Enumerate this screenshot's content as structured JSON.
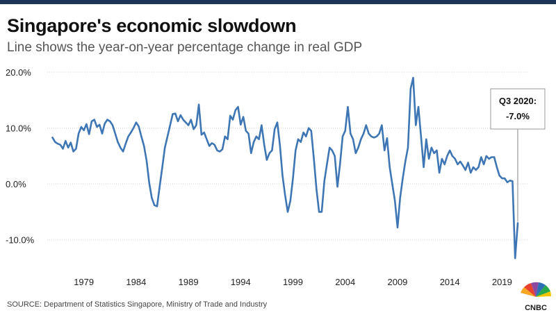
{
  "header": {
    "title": "Singapore's economic slowdown",
    "subtitle": "Line shows the year-on-year percentage change in real GDP"
  },
  "footer": {
    "source": "SOURCE: Department of Statistics Singapore, Ministry of Trade and Industry",
    "logo_text": "CNBC",
    "logo_icon": "peacock-icon"
  },
  "colors": {
    "line": "#3e76b5",
    "grid": "#d4d4d4",
    "annotation_border": "#999999",
    "top_bar": "#1e3557"
  },
  "chart_data": {
    "type": "line",
    "title": "Singapore's economic slowdown",
    "subtitle": "Line shows the year-on-year percentage change in real GDP",
    "xlabel": "",
    "ylabel": "",
    "xlim": [
      1975.5,
      2021.5
    ],
    "ylim": [
      -15,
      20
    ],
    "x_ticks": [
      1979,
      1984,
      1989,
      1994,
      1999,
      2004,
      2009,
      2014,
      2019
    ],
    "x_tick_labels": [
      "1979",
      "1984",
      "1989",
      "1994",
      "1999",
      "2004",
      "2009",
      "2014",
      "2019"
    ],
    "y_ticks": [
      20,
      10,
      0,
      -10
    ],
    "y_tick_labels": [
      "20.0%",
      "10.0%",
      "0.0%",
      "-10.0%"
    ],
    "grid": "horizontal",
    "legend": "none",
    "annotation": {
      "lines": [
        "Q3 2020:",
        "-7.0%"
      ],
      "x": 2020.5,
      "y": -7.0
    },
    "series": [
      {
        "points": [
          [
            1976.0,
            8.3
          ],
          [
            1976.25,
            7.5
          ],
          [
            1976.5,
            7.2
          ],
          [
            1976.75,
            7.0
          ],
          [
            1977.0,
            6.3
          ],
          [
            1977.25,
            7.7
          ],
          [
            1977.5,
            6.5
          ],
          [
            1977.75,
            7.4
          ],
          [
            1978.0,
            5.8
          ],
          [
            1978.25,
            6.3
          ],
          [
            1978.5,
            9.0
          ],
          [
            1978.75,
            10.2
          ],
          [
            1979.0,
            9.6
          ],
          [
            1979.25,
            10.7
          ],
          [
            1979.5,
            8.9
          ],
          [
            1979.75,
            11.2
          ],
          [
            1980.0,
            11.5
          ],
          [
            1980.25,
            10.2
          ],
          [
            1980.5,
            10.6
          ],
          [
            1980.75,
            9.0
          ],
          [
            1981.0,
            10.8
          ],
          [
            1981.25,
            11.5
          ],
          [
            1981.5,
            11.2
          ],
          [
            1981.75,
            10.5
          ],
          [
            1982.0,
            9.0
          ],
          [
            1982.25,
            7.5
          ],
          [
            1982.5,
            6.5
          ],
          [
            1982.75,
            5.8
          ],
          [
            1983.0,
            7.2
          ],
          [
            1983.25,
            8.5
          ],
          [
            1983.5,
            9.2
          ],
          [
            1983.75,
            10.0
          ],
          [
            1984.0,
            11.0
          ],
          [
            1984.25,
            10.3
          ],
          [
            1984.5,
            8.5
          ],
          [
            1984.75,
            6.8
          ],
          [
            1985.0,
            4.2
          ],
          [
            1985.25,
            0.2
          ],
          [
            1985.5,
            -2.5
          ],
          [
            1985.75,
            -3.8
          ],
          [
            1986.0,
            -4.0
          ],
          [
            1986.25,
            -0.5
          ],
          [
            1986.5,
            3.0
          ],
          [
            1986.75,
            6.5
          ],
          [
            1987.0,
            8.5
          ],
          [
            1987.25,
            10.5
          ],
          [
            1987.5,
            12.5
          ],
          [
            1987.75,
            12.6
          ],
          [
            1988.0,
            11.2
          ],
          [
            1988.25,
            12.3
          ],
          [
            1988.5,
            11.5
          ],
          [
            1988.75,
            11.0
          ],
          [
            1989.0,
            10.5
          ],
          [
            1989.25,
            11.5
          ],
          [
            1989.5,
            9.8
          ],
          [
            1989.75,
            10.5
          ],
          [
            1990.0,
            14.2
          ],
          [
            1990.25,
            8.8
          ],
          [
            1990.5,
            9.2
          ],
          [
            1990.75,
            8.0
          ],
          [
            1991.0,
            6.8
          ],
          [
            1991.25,
            7.3
          ],
          [
            1991.5,
            7.0
          ],
          [
            1991.75,
            6.0
          ],
          [
            1992.0,
            5.8
          ],
          [
            1992.25,
            6.2
          ],
          [
            1992.5,
            8.5
          ],
          [
            1992.75,
            8.0
          ],
          [
            1993.0,
            12.2
          ],
          [
            1993.25,
            11.5
          ],
          [
            1993.5,
            13.2
          ],
          [
            1993.75,
            13.8
          ],
          [
            1994.0,
            10.6
          ],
          [
            1994.25,
            12.0
          ],
          [
            1994.5,
            9.5
          ],
          [
            1994.75,
            9.0
          ],
          [
            1995.0,
            5.5
          ],
          [
            1995.25,
            7.5
          ],
          [
            1995.5,
            8.5
          ],
          [
            1995.75,
            8.0
          ],
          [
            1996.0,
            10.5
          ],
          [
            1996.25,
            7.0
          ],
          [
            1996.5,
            4.3
          ],
          [
            1996.75,
            5.5
          ],
          [
            1997.0,
            6.0
          ],
          [
            1997.25,
            9.8
          ],
          [
            1997.5,
            11.0
          ],
          [
            1997.75,
            7.0
          ],
          [
            1998.0,
            1.5
          ],
          [
            1998.25,
            -2.0
          ],
          [
            1998.5,
            -5.0
          ],
          [
            1998.75,
            -3.0
          ],
          [
            1999.0,
            1.0
          ],
          [
            1999.25,
            6.0
          ],
          [
            1999.5,
            8.0
          ],
          [
            1999.75,
            7.5
          ],
          [
            2000.0,
            9.2
          ],
          [
            2000.25,
            8.5
          ],
          [
            2000.5,
            10.0
          ],
          [
            2000.75,
            9.5
          ],
          [
            2001.0,
            4.5
          ],
          [
            2001.25,
            -1.0
          ],
          [
            2001.5,
            -5.0
          ],
          [
            2001.75,
            -5.0
          ],
          [
            2002.0,
            0.5
          ],
          [
            2002.25,
            3.5
          ],
          [
            2002.5,
            6.5
          ],
          [
            2002.75,
            6.0
          ],
          [
            2003.0,
            5.0
          ],
          [
            2003.25,
            -0.5
          ],
          [
            2003.5,
            3.5
          ],
          [
            2003.75,
            8.5
          ],
          [
            2004.0,
            9.5
          ],
          [
            2004.25,
            13.8
          ],
          [
            2004.5,
            9.0
          ],
          [
            2004.75,
            8.0
          ],
          [
            2005.0,
            5.5
          ],
          [
            2005.25,
            6.5
          ],
          [
            2005.5,
            8.0
          ],
          [
            2005.75,
            9.0
          ],
          [
            2006.0,
            10.5
          ],
          [
            2006.25,
            9.0
          ],
          [
            2006.5,
            8.5
          ],
          [
            2006.75,
            8.3
          ],
          [
            2007.0,
            8.5
          ],
          [
            2007.25,
            9.0
          ],
          [
            2007.5,
            10.5
          ],
          [
            2007.75,
            6.0
          ],
          [
            2008.0,
            8.2
          ],
          [
            2008.25,
            3.0
          ],
          [
            2008.5,
            0.0
          ],
          [
            2008.75,
            -3.0
          ],
          [
            2009.0,
            -7.8
          ],
          [
            2009.25,
            -2.5
          ],
          [
            2009.5,
            1.0
          ],
          [
            2009.75,
            4.0
          ],
          [
            2010.0,
            6.5
          ],
          [
            2010.25,
            17.0
          ],
          [
            2010.5,
            19.0
          ],
          [
            2010.75,
            10.5
          ],
          [
            2011.0,
            13.8
          ],
          [
            2011.25,
            8.5
          ],
          [
            2011.5,
            3.0
          ],
          [
            2011.75,
            8.0
          ],
          [
            2012.0,
            4.5
          ],
          [
            2012.25,
            6.5
          ],
          [
            2012.5,
            5.5
          ],
          [
            2012.75,
            6.0
          ],
          [
            2013.0,
            2.0
          ],
          [
            2013.25,
            4.5
          ],
          [
            2013.5,
            3.5
          ],
          [
            2013.75,
            5.0
          ],
          [
            2014.0,
            6.0
          ],
          [
            2014.25,
            5.0
          ],
          [
            2014.5,
            4.5
          ],
          [
            2014.75,
            3.5
          ],
          [
            2015.0,
            4.0
          ],
          [
            2015.25,
            3.3
          ],
          [
            2015.5,
            2.5
          ],
          [
            2015.75,
            3.8
          ],
          [
            2016.0,
            2.0
          ],
          [
            2016.25,
            3.0
          ],
          [
            2016.5,
            2.5
          ],
          [
            2016.75,
            3.0
          ],
          [
            2017.0,
            4.8
          ],
          [
            2017.25,
            3.5
          ],
          [
            2017.5,
            5.0
          ],
          [
            2017.75,
            4.5
          ],
          [
            2018.0,
            4.8
          ],
          [
            2018.25,
            4.8
          ],
          [
            2018.5,
            3.0
          ],
          [
            2018.75,
            1.5
          ],
          [
            2019.0,
            1.0
          ],
          [
            2019.25,
            1.0
          ],
          [
            2019.5,
            0.3
          ],
          [
            2019.75,
            0.6
          ],
          [
            2020.0,
            0.5
          ],
          [
            2020.25,
            -13.3
          ],
          [
            2020.5,
            -7.0
          ]
        ]
      }
    ]
  }
}
